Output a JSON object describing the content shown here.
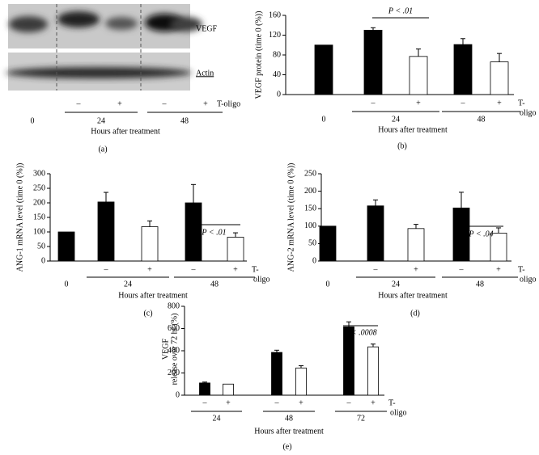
{
  "blot": {
    "labels": [
      "VEGF",
      "Actin"
    ],
    "signs": [
      "–",
      "+",
      "–",
      "+"
    ],
    "treatment": "T-oligo",
    "time0": "0",
    "groups": [
      "24",
      "48"
    ],
    "xlabel": "Hours after treatment",
    "panel": "(a)"
  },
  "chart_data": [
    {
      "type": "bar",
      "ylabel": "VEGF protein (time 0 (%))",
      "categories": [
        "0",
        "–",
        "+",
        "–",
        "+"
      ],
      "values": [
        100,
        130,
        77,
        101,
        66
      ],
      "errors": [
        null,
        5,
        15,
        12,
        17
      ],
      "colors": [
        "#000000",
        "#000000",
        "#ffffff",
        "#000000",
        "#ffffff"
      ],
      "groups": [
        "24",
        "48"
      ],
      "treatment": [
        "T-",
        "oligo"
      ],
      "xlabel": "Hours after treatment",
      "panel": "(b)",
      "annotation": "P < .01",
      "ylim": [
        0,
        160
      ],
      "yticks": [
        0,
        40,
        80,
        120,
        160
      ]
    },
    {
      "type": "bar",
      "ylabel": "ANG-1 mRNA level (time 0 (%))",
      "categories": [
        "0",
        "–",
        "+",
        "–",
        "+"
      ],
      "values": [
        100,
        203,
        118,
        200,
        82
      ],
      "errors": [
        null,
        33,
        20,
        63,
        15
      ],
      "colors": [
        "#000000",
        "#000000",
        "#ffffff",
        "#000000",
        "#ffffff"
      ],
      "groups": [
        "24",
        "48"
      ],
      "treatment": [
        "T-",
        "oligo"
      ],
      "xlabel": "Hours after treatment",
      "panel": "(c)",
      "annotation": "P < .01",
      "ylim": [
        0,
        300
      ],
      "yticks": [
        0,
        50,
        100,
        150,
        200,
        250,
        300
      ]
    },
    {
      "type": "bar",
      "ylabel": "ANG-2 mRNA level (time 0 (%))",
      "categories": [
        "0",
        "–",
        "+",
        "–",
        "+"
      ],
      "values": [
        100,
        158,
        93,
        152,
        80
      ],
      "errors": [
        null,
        17,
        12,
        45,
        15
      ],
      "colors": [
        "#000000",
        "#000000",
        "#ffffff",
        "#000000",
        "#ffffff"
      ],
      "groups": [
        "24",
        "48"
      ],
      "treatment": [
        "T-",
        "oligo"
      ],
      "xlabel": "Hours after treatment",
      "panel": "(d)",
      "annotation": "P < .04",
      "ylim": [
        0,
        250
      ],
      "yticks": [
        0,
        50,
        100,
        150,
        200,
        250
      ]
    },
    {
      "type": "bar",
      "ylabel": [
        "VEGF",
        "release over 72 hr (%)"
      ],
      "categories": [
        "–",
        "+",
        "–",
        "+",
        "–",
        "+"
      ],
      "values": [
        110,
        100,
        385,
        245,
        615,
        435
      ],
      "errors": [
        8,
        null,
        20,
        20,
        45,
        25
      ],
      "colors": [
        "#000000",
        "#ffffff",
        "#000000",
        "#ffffff",
        "#000000",
        "#ffffff"
      ],
      "groups": [
        "24",
        "48",
        "72"
      ],
      "treatment": [
        "T-",
        "oligo"
      ],
      "xlabel": "Hours after treatment",
      "panel": "(e)",
      "annotation": "P < .0008",
      "ylim": [
        0,
        800
      ],
      "yticks": [
        0,
        200,
        400,
        600,
        800
      ]
    }
  ]
}
